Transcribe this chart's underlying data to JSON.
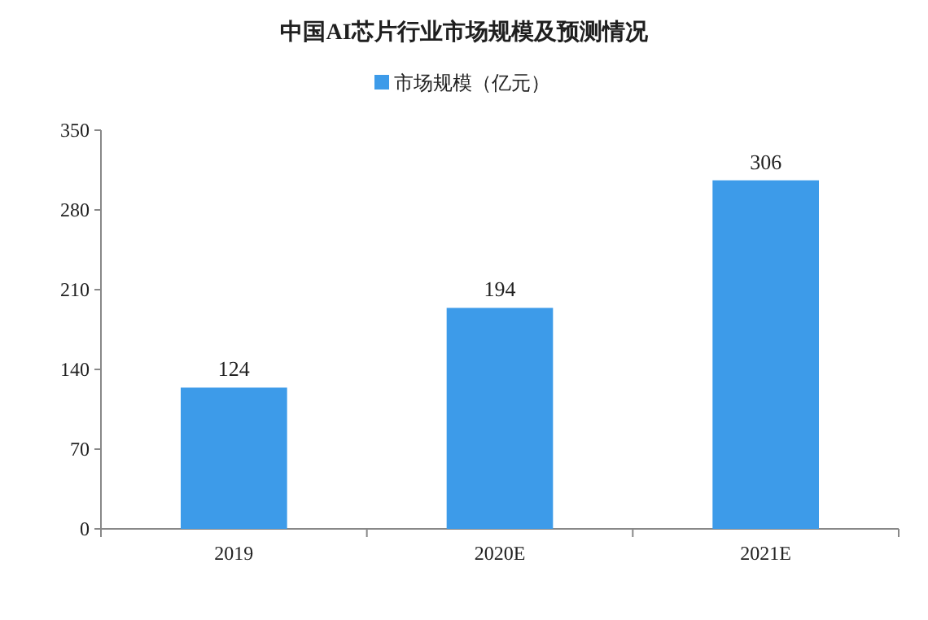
{
  "chart_data": {
    "type": "bar",
    "title": "中国AI芯片行业市场规模及预测情况",
    "categories": [
      "2019",
      "2020E",
      "2021E"
    ],
    "series": [
      {
        "name": "市场规模（亿元）",
        "color": "#3d9be9",
        "values": [
          124,
          194,
          306
        ]
      }
    ],
    "ylim": [
      0,
      350
    ],
    "yticks": [
      0,
      70,
      140,
      210,
      280,
      350
    ],
    "data_labels": true,
    "legend": "top"
  }
}
